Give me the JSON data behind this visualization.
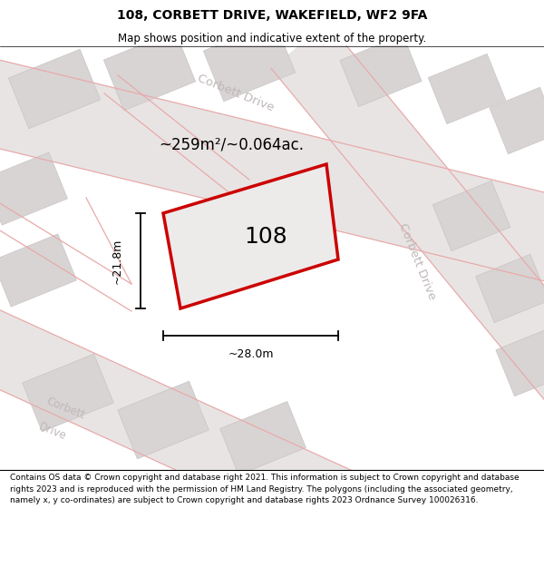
{
  "title_line1": "108, CORBETT DRIVE, WAKEFIELD, WF2 9FA",
  "title_line2": "Map shows position and indicative extent of the property.",
  "footer_text": "Contains OS data © Crown copyright and database right 2021. This information is subject to Crown copyright and database rights 2023 and is reproduced with the permission of HM Land Registry. The polygons (including the associated geometry, namely x, y co-ordinates) are subject to Crown copyright and database rights 2023 Ordnance Survey 100026316.",
  "area_text": "~259m²/~0.064ac.",
  "width_label": "~28.0m",
  "height_label": "~21.8m",
  "plot_number": "108",
  "bg_color": "#f0eeee",
  "block_color": "#d8d4d4",
  "block_edge": "#c8c4c4",
  "road_color": "#e8e4e4",
  "pink_road": "#e8aaaa",
  "plot_fill": "#edeaea",
  "plot_edge": "#cc0000",
  "street_label": "#c0b8b8",
  "title_bg": "#ffffff",
  "footer_bg": "#ffffff"
}
